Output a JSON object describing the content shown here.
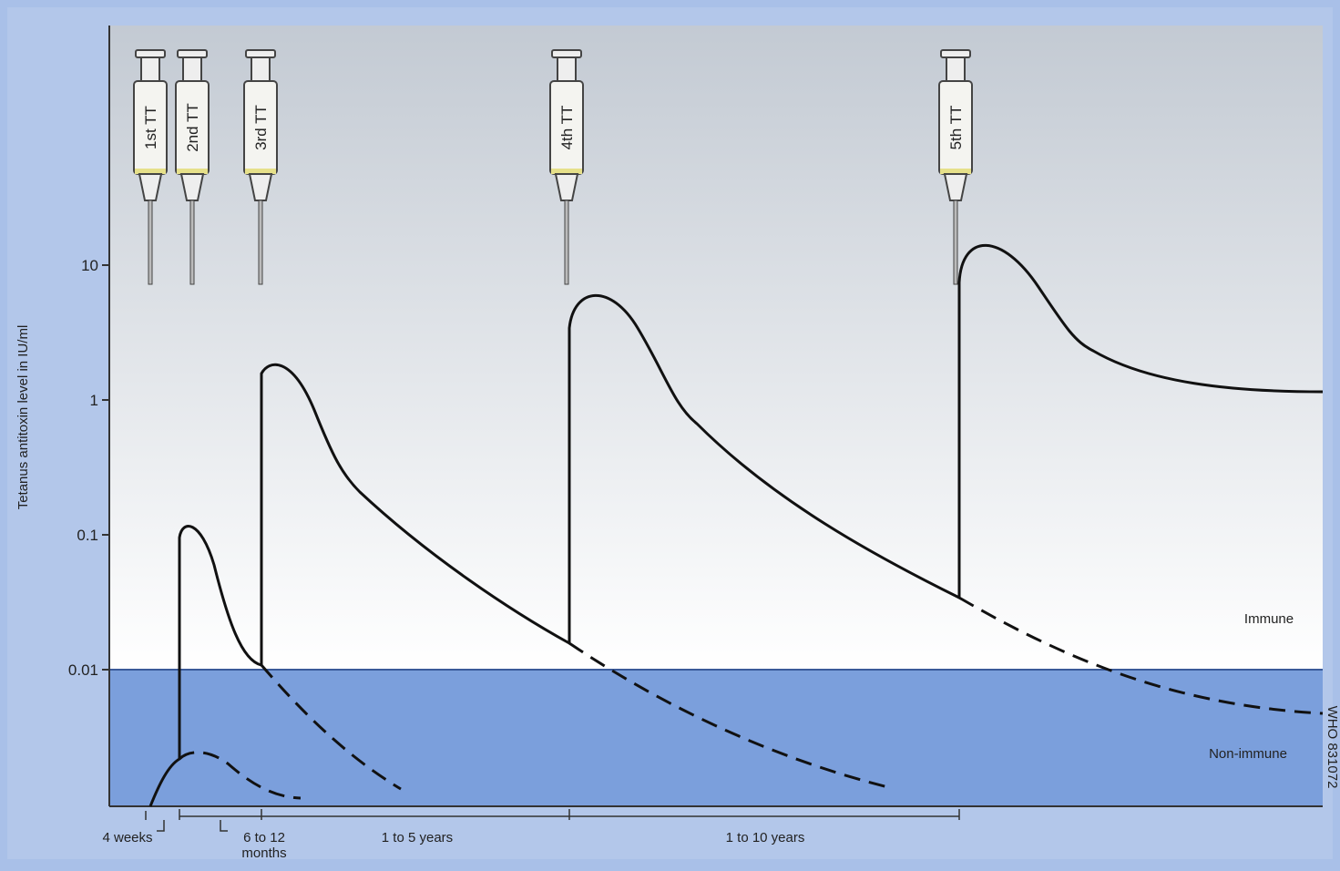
{
  "y_axis": {
    "label": "Tetanus antitoxin level in IU/ml",
    "ticks": [
      "10",
      "1",
      "0.1",
      "0.01"
    ]
  },
  "doses": [
    "1st TT",
    "2nd TT",
    "3rd TT",
    "4th TT",
    "5th TT"
  ],
  "intervals": [
    "4 weeks",
    "6 to 12\nmonths",
    "1 to 5 years",
    "1 to 10 years"
  ],
  "zones": {
    "immune": "Immune",
    "non_immune": "Non-immune"
  },
  "code": "WHO 831072"
}
